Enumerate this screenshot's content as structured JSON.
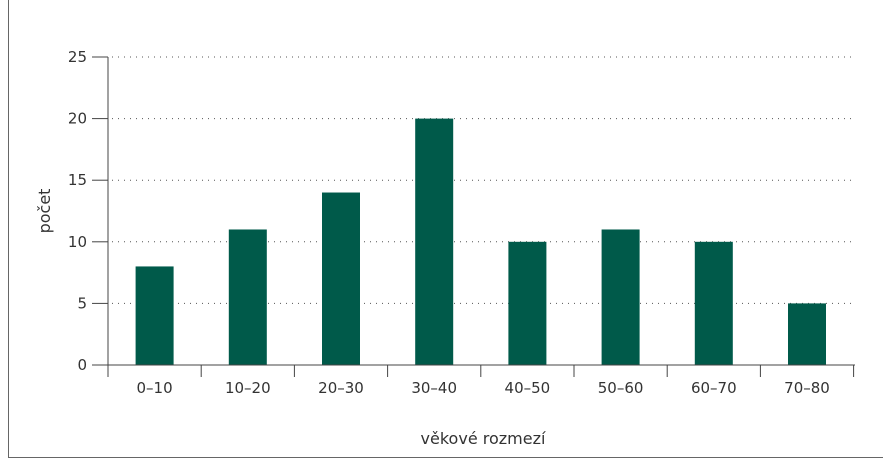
{
  "chart_data": {
    "type": "bar",
    "categories": [
      "0–10",
      "10–20",
      "20–30",
      "30–40",
      "40–50",
      "50–60",
      "60–70",
      "70–80"
    ],
    "values": [
      8,
      11,
      14,
      20,
      10,
      11,
      10,
      5
    ],
    "xlabel": "věkové rozmezí",
    "ylabel": "počet",
    "ylim": [
      0,
      25
    ],
    "yticks": [
      0,
      5,
      10,
      15,
      20,
      25
    ],
    "grid": "horizontal-dotted",
    "bar_color": "#005a4a"
  }
}
